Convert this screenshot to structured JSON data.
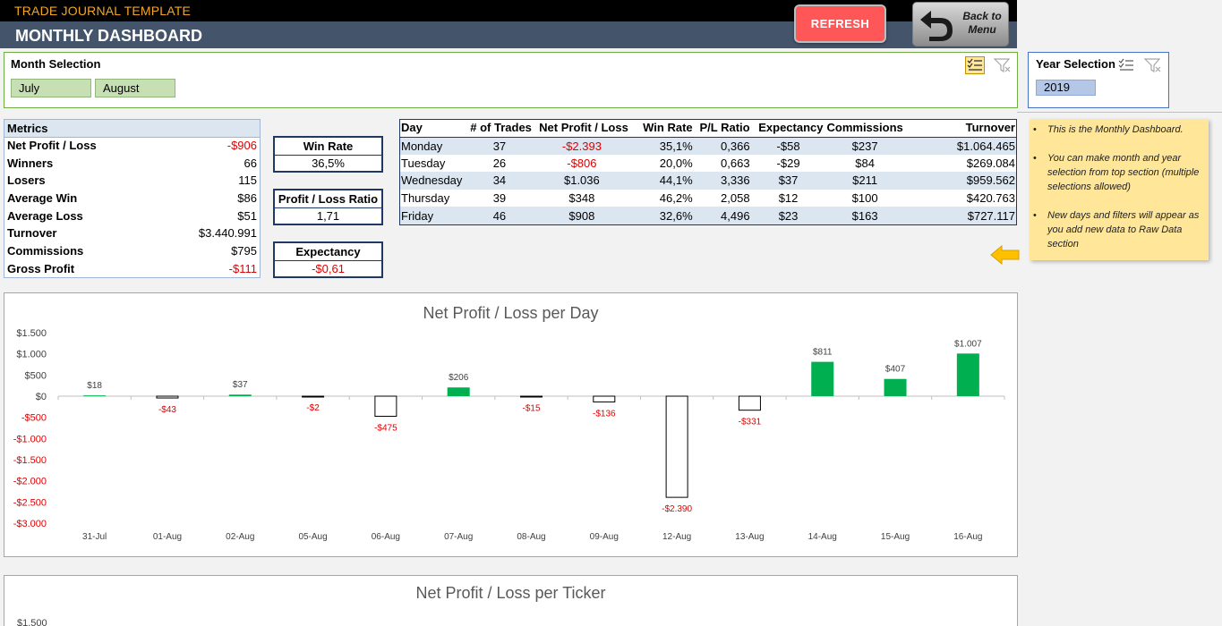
{
  "header": {
    "app_title": "TRADE JOURNAL TEMPLATE",
    "page_title": "MONTHLY DASHBOARD",
    "refresh_label": "REFRESH",
    "back_label_1": "Back to",
    "back_label_2": "Menu"
  },
  "month_slicer": {
    "title": "Month Selection",
    "items": [
      "July",
      "August"
    ]
  },
  "year_slicer": {
    "title": "Year Selection",
    "items": [
      "2019"
    ]
  },
  "metrics": {
    "header": "Metrics",
    "rows": [
      {
        "label": "Net Profit / Loss",
        "value": "-$906",
        "negative": true
      },
      {
        "label": "Winners",
        "value": "66",
        "negative": false
      },
      {
        "label": "Losers",
        "value": "115",
        "negative": false
      },
      {
        "label": "Average Win",
        "value": "$86",
        "negative": false
      },
      {
        "label": "Average Loss",
        "value": "$51",
        "negative": false
      },
      {
        "label": "Turnover",
        "value": "$3.440.991",
        "negative": false
      },
      {
        "label": "Commissions",
        "value": "$795",
        "negative": false
      },
      {
        "label": "Gross Profit",
        "value": "-$111",
        "negative": true
      }
    ]
  },
  "kpis": {
    "win_rate": {
      "title": "Win Rate",
      "value": "36,5%"
    },
    "pl_ratio": {
      "title": "Profit / Loss Ratio",
      "value": "1,71"
    },
    "expectancy": {
      "title": "Expectancy",
      "value": "-$0,61",
      "negative": true
    }
  },
  "day_table": {
    "headers": [
      "Day",
      "# of Trades",
      "Net Profit / Loss",
      "Win Rate",
      "P/L Ratio",
      "Expectancy",
      "Commissions",
      "Turnover"
    ],
    "rows": [
      [
        "Monday",
        "37",
        "-$2.393",
        "35,1%",
        "0,366",
        "-$58",
        "$237",
        "$1.064.465"
      ],
      [
        "Tuesday",
        "26",
        "-$806",
        "20,0%",
        "0,663",
        "-$29",
        "$84",
        "$269.084"
      ],
      [
        "Wednesday",
        "34",
        "$1.036",
        "44,1%",
        "3,336",
        "$37",
        "$211",
        "$959.562"
      ],
      [
        "Thursday",
        "39",
        "$348",
        "46,2%",
        "2,058",
        "$12",
        "$100",
        "$420.763"
      ],
      [
        "Friday",
        "46",
        "$908",
        "32,6%",
        "4,496",
        "$23",
        "$163",
        "$727.117"
      ]
    ]
  },
  "note": {
    "items": [
      "This is the Monthly Dashboard.",
      "You can make month and year selection from top section (multiple selections allowed)",
      "New days and filters will appear as you add new data to Raw Data section"
    ]
  },
  "colors": {
    "accent_orange": "#f5a623",
    "header_blue": "#44546a",
    "refresh_red": "#ff5757",
    "positive_bar": "#00b050",
    "negative_text": "#e00000"
  },
  "icons": {
    "back": "back-arrow-icon",
    "multi_select": "multi-select-icon",
    "clear_filter": "clear-filter-icon",
    "pointer_arrow": "pointer-arrow-icon"
  },
  "chart_data": [
    {
      "type": "bar",
      "title": "Net Profit / Loss per Day",
      "categories": [
        "31-Jul",
        "01-Aug",
        "02-Aug",
        "05-Aug",
        "06-Aug",
        "07-Aug",
        "08-Aug",
        "09-Aug",
        "12-Aug",
        "13-Aug",
        "14-Aug",
        "15-Aug",
        "16-Aug"
      ],
      "values": [
        18,
        -43,
        37,
        -2,
        -475,
        206,
        -15,
        -136,
        -2390,
        -331,
        811,
        407,
        1007
      ],
      "data_labels": [
        "$18",
        "-$43",
        "$37",
        "-$2",
        "-$475",
        "$206",
        "-$15",
        "-$136",
        "-$2.390",
        "-$331",
        "$811",
        "$407",
        "$1.007"
      ],
      "yticks": [
        1500,
        1000,
        500,
        0,
        -500,
        -1000,
        -1500,
        -2000,
        -2500,
        -3000
      ],
      "ytick_labels": [
        "$1.500",
        "$1.000",
        "$500",
        "$0",
        "-$500",
        "-$1.000",
        "-$1.500",
        "-$2.000",
        "-$2.500",
        "-$3.000"
      ],
      "ylim": [
        -3000,
        1500
      ],
      "grid": false
    },
    {
      "type": "bar",
      "title": "Net Profit / Loss per Ticker",
      "ytick_labels": [
        "$1.500"
      ]
    }
  ]
}
